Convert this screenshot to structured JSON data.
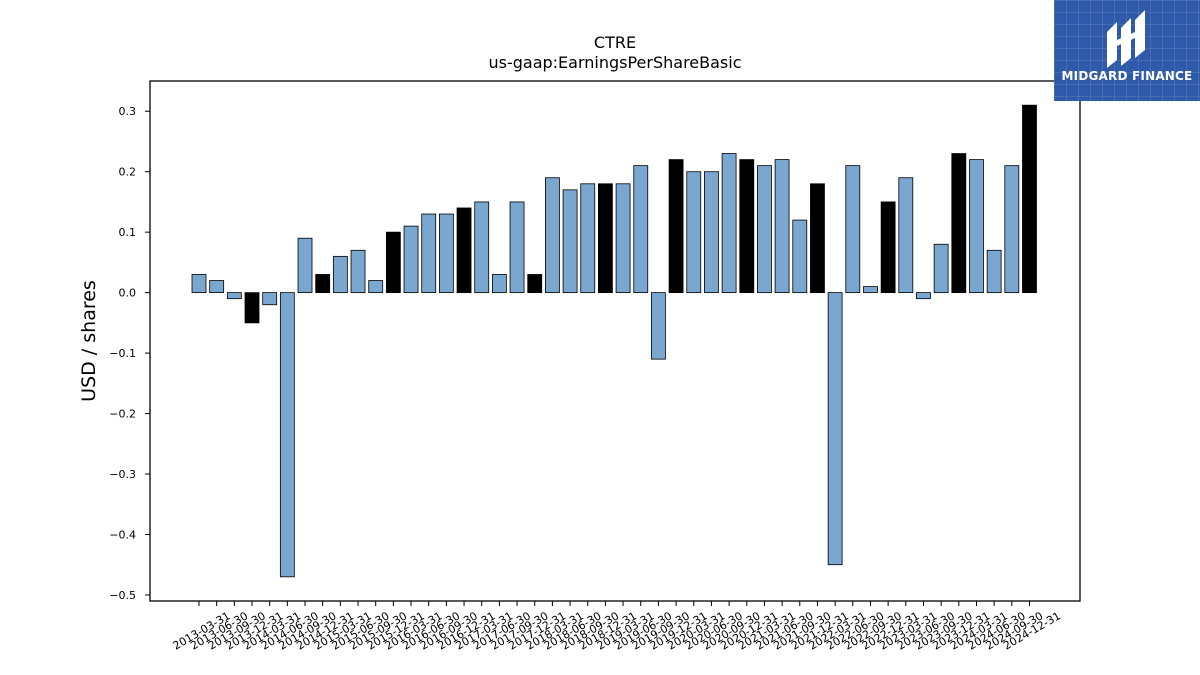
{
  "chart_data": {
    "type": "bar",
    "title": "CTRE",
    "subtitle": "us-gaap:EarningsPerShareBasic",
    "ylabel": "USD / shares",
    "xlabel": "",
    "ylim": [
      -0.51,
      0.35
    ],
    "yticks": [
      0.3,
      0.2,
      0.1,
      0.0,
      -0.1,
      -0.2,
      -0.3,
      -0.4,
      -0.5
    ],
    "ytick_labels": [
      "0.3",
      "0.2",
      "0.1",
      "0.0",
      "−0.1",
      "−0.2",
      "−0.3",
      "−0.4",
      "−0.5"
    ],
    "grid": false,
    "colors": {
      "quarterly": "#7aa7cf",
      "annual": "#000000"
    },
    "categories": [
      "2013-03-31",
      "2013-06-30",
      "2013-09-30",
      "2013-12-31",
      "2014-03-31",
      "2014-06-30",
      "2014-09-30",
      "2014-12-31",
      "2015-03-31",
      "2015-06-30",
      "2015-09-30",
      "2015-12-31",
      "2016-03-31",
      "2016-06-30",
      "2016-09-30",
      "2016-12-31",
      "2017-03-31",
      "2017-06-30",
      "2017-09-30",
      "2017-12-31",
      "2018-03-31",
      "2018-06-30",
      "2018-09-30",
      "2018-12-31",
      "2019-03-31",
      "2019-06-30",
      "2019-09-30",
      "2019-12-31",
      "2020-03-31",
      "2020-06-30",
      "2020-09-30",
      "2020-12-31",
      "2021-03-31",
      "2021-06-30",
      "2021-09-30",
      "2021-12-31",
      "2022-03-31",
      "2022-06-30",
      "2022-09-30",
      "2022-12-31",
      "2023-03-31",
      "2023-06-30",
      "2023-09-30",
      "2023-12-31",
      "2024-03-31",
      "2024-06-30",
      "2024-09-30",
      "2024-12-31"
    ],
    "values": [
      0.03,
      0.02,
      -0.01,
      -0.05,
      -0.02,
      -0.47,
      0.09,
      0.03,
      0.06,
      0.07,
      0.02,
      0.1,
      0.11,
      0.13,
      0.13,
      0.14,
      0.15,
      0.03,
      0.15,
      0.03,
      0.19,
      0.17,
      0.18,
      0.18,
      0.18,
      0.21,
      -0.11,
      0.22,
      0.2,
      0.2,
      0.23,
      0.22,
      0.21,
      0.22,
      0.12,
      0.18,
      -0.45,
      0.21,
      0.01,
      0.15,
      0.19,
      -0.01,
      0.08,
      0.23,
      0.22,
      0.07,
      0.21,
      0.31
    ],
    "highlight": [
      false,
      false,
      false,
      true,
      false,
      false,
      false,
      true,
      false,
      false,
      false,
      true,
      false,
      false,
      false,
      true,
      false,
      false,
      false,
      true,
      false,
      false,
      false,
      true,
      false,
      false,
      false,
      true,
      false,
      false,
      false,
      true,
      false,
      false,
      false,
      true,
      false,
      false,
      false,
      true,
      false,
      false,
      false,
      true,
      false,
      false,
      false,
      true
    ]
  },
  "logo": {
    "text": "MIDGARD FINANCE"
  }
}
